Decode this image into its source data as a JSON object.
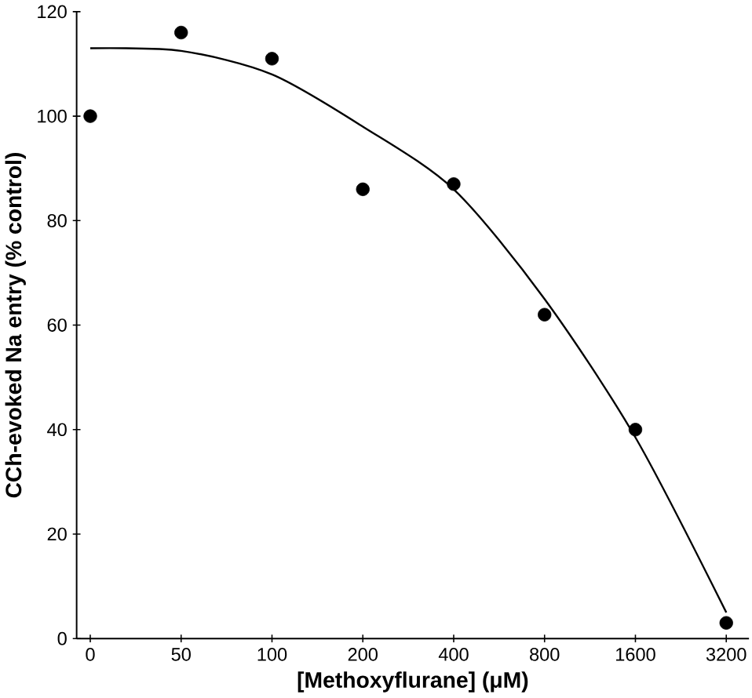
{
  "chart_data": {
    "type": "scatter",
    "xlabel": "[Methoxyflurane] (μM)",
    "ylabel": "CCh-evoked Na entry (% control)",
    "categories": [
      "0",
      "50",
      "100",
      "200",
      "400",
      "800",
      "1600",
      "3200"
    ],
    "series": [
      {
        "color": "#000000",
        "marker": "circle",
        "values": [
          100,
          116,
          111,
          86,
          87,
          62,
          40,
          3
        ]
      },
      {
        "type": "line",
        "color": "#000000",
        "marker": "none",
        "line_style": "solid",
        "values": [
          113,
          112.5,
          108,
          98,
          86,
          65,
          38.5,
          5
        ]
      }
    ],
    "ylim": [
      0,
      120
    ],
    "yticks": [
      0,
      20,
      40,
      60,
      80,
      100,
      120
    ],
    "grid": false
  }
}
